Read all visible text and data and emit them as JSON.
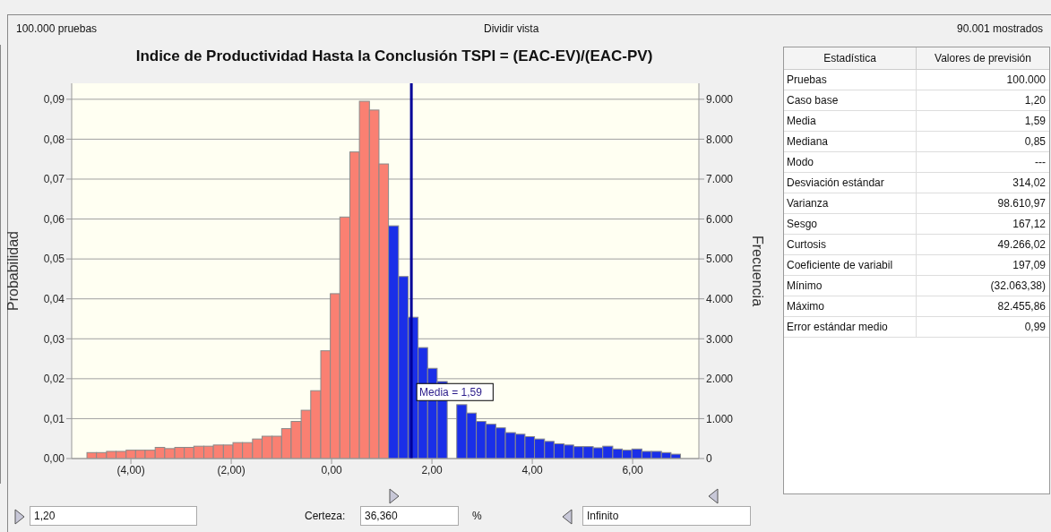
{
  "chart_data": [
    {
      "type": "histogram",
      "title": "Indice de Productividad Hasta la Conclusión TSPI = (EAC-EV)/(EAC-PV)",
      "ylabel": "Probabilidad",
      "y2label": "Frecuencia",
      "bins": [
        -4.87,
        -4.68,
        -4.48,
        -4.29,
        -4.09,
        -3.9,
        -3.71,
        -3.51,
        -3.32,
        -3.12,
        -2.93,
        -2.74,
        -2.54,
        -2.35,
        -2.15,
        -1.96,
        -1.77,
        -1.57,
        -1.38,
        -1.18,
        -0.99,
        -0.8,
        -0.6,
        -0.41,
        -0.21,
        -0.02,
        0.17,
        0.37,
        0.56,
        0.76,
        0.95,
        1.14,
        1.34,
        1.53,
        1.73,
        1.92,
        2.11,
        2.31,
        2.5,
        2.7,
        2.89,
        3.08,
        3.28,
        3.47,
        3.67,
        3.86,
        4.05,
        4.25,
        4.44,
        4.64,
        4.83,
        5.02,
        5.22,
        5.41,
        5.61,
        5.8,
        5.99,
        6.19,
        6.38,
        6.58,
        6.77,
        6.96
      ],
      "values": [
        0.0015,
        0.0015,
        0.0018,
        0.0018,
        0.0021,
        0.0021,
        0.0021,
        0.0028,
        0.0025,
        0.0028,
        0.0028,
        0.0031,
        0.0031,
        0.0034,
        0.0034,
        0.004,
        0.004,
        0.0049,
        0.0056,
        0.0056,
        0.0075,
        0.0093,
        0.0121,
        0.017,
        0.027,
        0.0413,
        0.0605,
        0.0768,
        0.0895,
        0.0873,
        0.0738,
        0.0583,
        0.0456,
        0.0354,
        0.0278,
        0.0226,
        0.0193,
        null,
        0.0135,
        0.0114,
        0.0093,
        0.0086,
        0.0077,
        0.0065,
        0.0061,
        0.0055,
        0.0049,
        0.0043,
        0.0037,
        0.0034,
        0.003,
        0.003,
        0.0027,
        0.0031,
        0.0024,
        0.0021,
        0.0024,
        0.0018,
        0.0018,
        0.0015,
        0.0011
      ],
      "colors": [
        "#fa8072",
        "#fa8072",
        "#fa8072",
        "#fa8072",
        "#fa8072",
        "#fa8072",
        "#fa8072",
        "#fa8072",
        "#fa8072",
        "#fa8072",
        "#fa8072",
        "#fa8072",
        "#fa8072",
        "#fa8072",
        "#fa8072",
        "#fa8072",
        "#fa8072",
        "#fa8072",
        "#fa8072",
        "#fa8072",
        "#fa8072",
        "#fa8072",
        "#fa8072",
        "#fa8072",
        "#fa8072",
        "#fa8072",
        "#fa8072",
        "#fa8072",
        "#fa8072",
        "#fa8072",
        "#fa8072",
        "#1a2fe8",
        "#1a2fe8",
        "#1a2fe8",
        "#1a2fe8",
        "#1a2fe8",
        "#1a2fe8",
        "#1a2fe8",
        "#1a2fe8",
        "#1a2fe8",
        "#1a2fe8",
        "#1a2fe8",
        "#1a2fe8",
        "#1a2fe8",
        "#1a2fe8",
        "#1a2fe8",
        "#1a2fe8",
        "#1a2fe8",
        "#1a2fe8",
        "#1a2fe8",
        "#1a2fe8",
        "#1a2fe8",
        "#1a2fe8",
        "#1a2fe8",
        "#1a2fe8",
        "#1a2fe8",
        "#1a2fe8",
        "#1a2fe8",
        "#1a2fe8",
        "#1a2fe8",
        "#1a2fe8"
      ],
      "xlim": [
        -5.18,
        7.32
      ],
      "xticks": [
        {
          "value": -4,
          "label": "(4,00)"
        },
        {
          "value": -2,
          "label": "(2,00)"
        },
        {
          "value": 0,
          "label": "0,00"
        },
        {
          "value": 2,
          "label": "2,00"
        },
        {
          "value": 4,
          "label": "4,00"
        },
        {
          "value": 6,
          "label": "6,00"
        }
      ],
      "ylim": [
        0,
        0.094
      ],
      "yticks": [
        {
          "value": 0,
          "label": "0,00"
        },
        {
          "value": 0.01,
          "label": "0,01"
        },
        {
          "value": 0.02,
          "label": "0,02"
        },
        {
          "value": 0.03,
          "label": "0,03"
        },
        {
          "value": 0.04,
          "label": "0,04"
        },
        {
          "value": 0.05,
          "label": "0,05"
        },
        {
          "value": 0.06,
          "label": "0,06"
        },
        {
          "value": 0.07,
          "label": "0,07"
        },
        {
          "value": 0.08,
          "label": "0,08"
        },
        {
          "value": 0.09,
          "label": "0,09"
        }
      ],
      "y2lim": [
        0,
        9400
      ],
      "y2ticks": [
        {
          "value": 0,
          "label": "0"
        },
        {
          "value": 1000,
          "label": "1.000"
        },
        {
          "value": 2000,
          "label": "2.000"
        },
        {
          "value": 3000,
          "label": "3.000"
        },
        {
          "value": 4000,
          "label": "4.000"
        },
        {
          "value": 5000,
          "label": "5.000"
        },
        {
          "value": 6000,
          "label": "6.000"
        },
        {
          "value": 7000,
          "label": "7.000"
        },
        {
          "value": 8000,
          "label": "8.000"
        },
        {
          "value": 9000,
          "label": "9.000"
        }
      ],
      "ref_lines": [
        {
          "axis": "x",
          "value": 1.59,
          "label": "Media = 1,59",
          "color": "#000099"
        }
      ],
      "grid": "y",
      "annotations": [
        "100.000 pruebas",
        "Dividir vista",
        "90.001 mostrados",
        "1,20",
        "Certeza:",
        "36,360",
        "%",
        "Infinito"
      ]
    },
    {
      "type": "other",
      "annotations": [
        "Estadística",
        "Valores de previsión"
      ],
      "categories": [
        "Pruebas",
        "Caso base",
        "Media",
        "Mediana",
        "Modo",
        "Desviación estándar",
        "Varianza",
        "Sesgo",
        "Curtosis",
        "Coeficiente de variabil",
        "Mínimo",
        "Máximo",
        "Error estándar medio"
      ],
      "value_labels": [
        "100.000",
        "1,20",
        "1,59",
        "0,85",
        "---",
        "314,02",
        "98.610,97",
        "167,12",
        "49.266,02",
        "197,09",
        "(32.063,38)",
        "82.455,86",
        "0,99"
      ]
    }
  ]
}
